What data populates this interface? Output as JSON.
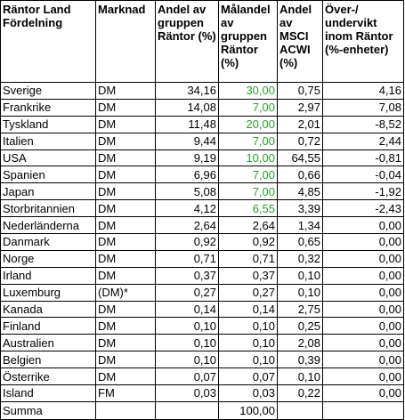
{
  "headers": [
    "Räntor Land Fördelning",
    "Marknad",
    "Andel av gruppen Räntor (%)",
    "Målandel av gruppen Räntor (%)",
    "Andel av MSCI ACWI (%)",
    "Över-/ undervikt inom Räntor (%-enheter)"
  ],
  "rows": [
    {
      "land": "Sverige",
      "marknad": "DM",
      "andel": "34,16",
      "malandel": "30,00",
      "msci": "0,75",
      "vikt": "4,16",
      "mal_green": true
    },
    {
      "land": "Frankrike",
      "marknad": "DM",
      "andel": "14,08",
      "malandel": "7,00",
      "msci": "2,97",
      "vikt": "7,08",
      "mal_green": true
    },
    {
      "land": "Tyskland",
      "marknad": "DM",
      "andel": "11,48",
      "malandel": "20,00",
      "msci": "2,01",
      "vikt": "-8,52",
      "mal_green": true
    },
    {
      "land": "Italien",
      "marknad": "DM",
      "andel": "9,44",
      "malandel": "7,00",
      "msci": "0,72",
      "vikt": "2,44",
      "mal_green": true
    },
    {
      "land": "USA",
      "marknad": "DM",
      "andel": "9,19",
      "malandel": "10,00",
      "msci": "64,55",
      "vikt": "-0,81",
      "mal_green": true
    },
    {
      "land": "Spanien",
      "marknad": "DM",
      "andel": "6,96",
      "malandel": "7,00",
      "msci": "0,66",
      "vikt": "-0,04",
      "mal_green": true
    },
    {
      "land": "Japan",
      "marknad": "DM",
      "andel": "5,08",
      "malandel": "7,00",
      "msci": "4,85",
      "vikt": "-1,92",
      "mal_green": true
    },
    {
      "land": "Storbritannien",
      "marknad": "DM",
      "andel": "4,12",
      "malandel": "6,55",
      "msci": "3,39",
      "vikt": "-2,43",
      "mal_green": true
    },
    {
      "land": "Nederländerna",
      "marknad": "DM",
      "andel": "2,64",
      "malandel": "2,64",
      "msci": "1,34",
      "vikt": "0,00",
      "mal_green": false
    },
    {
      "land": "Danmark",
      "marknad": "DM",
      "andel": "0,92",
      "malandel": "0,92",
      "msci": "0,65",
      "vikt": "0,00",
      "mal_green": false
    },
    {
      "land": "Norge",
      "marknad": "DM",
      "andel": "0,71",
      "malandel": "0,71",
      "msci": "0,32",
      "vikt": "0,00",
      "mal_green": false
    },
    {
      "land": "Irland",
      "marknad": "DM",
      "andel": "0,37",
      "malandel": "0,37",
      "msci": "0,10",
      "vikt": "0,00",
      "mal_green": false
    },
    {
      "land": "Luxemburg",
      "marknad": "(DM)*",
      "andel": "0,27",
      "malandel": "0,27",
      "msci": "0,10",
      "vikt": "0,00",
      "mal_green": false
    },
    {
      "land": "Kanada",
      "marknad": "DM",
      "andel": "0,14",
      "malandel": "0,14",
      "msci": "2,75",
      "vikt": "0,00",
      "mal_green": false
    },
    {
      "land": "Finland",
      "marknad": "DM",
      "andel": "0,10",
      "malandel": "0,10",
      "msci": "0,25",
      "vikt": "0,00",
      "mal_green": false
    },
    {
      "land": "Australien",
      "marknad": "DM",
      "andel": "0,10",
      "malandel": "0,10",
      "msci": "2,08",
      "vikt": "0,00",
      "mal_green": false
    },
    {
      "land": "Belgien",
      "marknad": "DM",
      "andel": "0,10",
      "malandel": "0,10",
      "msci": "0,39",
      "vikt": "0,00",
      "mal_green": false
    },
    {
      "land": "Österrike",
      "marknad": "DM",
      "andel": "0,07",
      "malandel": "0,07",
      "msci": "0,10",
      "vikt": "0,00",
      "mal_green": false
    },
    {
      "land": "Island",
      "marknad": "FM",
      "andel": "0,03",
      "malandel": "0,03",
      "msci": "0,22",
      "vikt": "0,00",
      "mal_green": false
    }
  ],
  "total": {
    "label": "Summa",
    "malandel": "100,00"
  },
  "colors": {
    "green": "#2ca02c",
    "border": "#000000"
  }
}
